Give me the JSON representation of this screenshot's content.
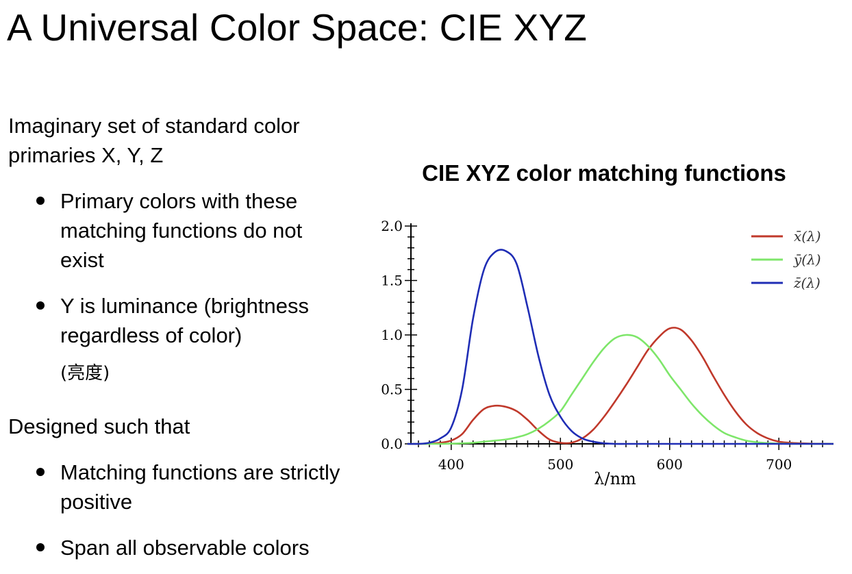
{
  "slide": {
    "title": "A Universal Color Space: CIE XYZ"
  },
  "content": {
    "intro": "Imaginary set of standard color primaries X, Y, Z",
    "bullets_1": [
      "Primary colors with these matching functions do not exist",
      "Y is luminance (brightness regardless of color)"
    ],
    "cjk_note": "(亮度)",
    "designed": "Designed such that",
    "bullets_2": [
      "Matching functions are strictly positive",
      "Span all observable colors"
    ]
  },
  "chart_data": {
    "type": "line",
    "title": "CIE XYZ color matching functions",
    "xlabel": "λ/nm",
    "ylabel": "",
    "xlim": [
      360,
      750
    ],
    "ylim": [
      0,
      2
    ],
    "x_ticks": [
      400,
      500,
      600,
      700
    ],
    "y_ticks": [
      0.0,
      0.5,
      1.0,
      1.5,
      2.0
    ],
    "y_tick_labels": [
      "0.0",
      "0.5",
      "1.0",
      "1.5",
      "2.0"
    ],
    "grid": false,
    "legend_position": "top-right",
    "x": [
      360,
      370,
      380,
      390,
      400,
      410,
      420,
      430,
      440,
      450,
      460,
      470,
      480,
      490,
      500,
      510,
      520,
      530,
      540,
      550,
      560,
      570,
      580,
      590,
      600,
      610,
      620,
      630,
      640,
      650,
      660,
      670,
      680,
      690,
      700,
      710,
      720,
      730,
      740,
      750
    ],
    "series": [
      {
        "name": "x̄(λ)",
        "color": "#c0392b",
        "values": [
          0.0,
          0.0,
          0.002,
          0.01,
          0.03,
          0.09,
          0.22,
          0.32,
          0.35,
          0.34,
          0.3,
          0.22,
          0.12,
          0.04,
          0.01,
          0.01,
          0.05,
          0.13,
          0.25,
          0.39,
          0.54,
          0.7,
          0.86,
          0.98,
          1.06,
          1.05,
          0.95,
          0.8,
          0.62,
          0.45,
          0.3,
          0.18,
          0.1,
          0.05,
          0.02,
          0.01,
          0.005,
          0.002,
          0.001,
          0.0
        ]
      },
      {
        "name": "ȳ(λ)",
        "color": "#7ee66a",
        "values": [
          0.0,
          0.0,
          0.0,
          0.0,
          0.002,
          0.005,
          0.01,
          0.02,
          0.03,
          0.04,
          0.06,
          0.09,
          0.14,
          0.21,
          0.3,
          0.45,
          0.6,
          0.75,
          0.88,
          0.97,
          1.0,
          0.98,
          0.9,
          0.78,
          0.63,
          0.5,
          0.37,
          0.26,
          0.17,
          0.1,
          0.06,
          0.03,
          0.015,
          0.007,
          0.003,
          0.001,
          0.0,
          0.0,
          0.0,
          0.0
        ]
      },
      {
        "name": "z̄(λ)",
        "color": "#1f2db5",
        "values": [
          0.0,
          0.0,
          0.01,
          0.05,
          0.15,
          0.5,
          1.15,
          1.6,
          1.76,
          1.77,
          1.65,
          1.25,
          0.8,
          0.45,
          0.25,
          0.12,
          0.05,
          0.02,
          0.005,
          0.0,
          0.0,
          0.0,
          0.0,
          0.0,
          0.0,
          0.0,
          0.0,
          0.0,
          0.0,
          0.0,
          0.0,
          0.0,
          0.0,
          0.0,
          0.0,
          0.0,
          0.0,
          0.0,
          0.0,
          0.0
        ]
      }
    ]
  }
}
